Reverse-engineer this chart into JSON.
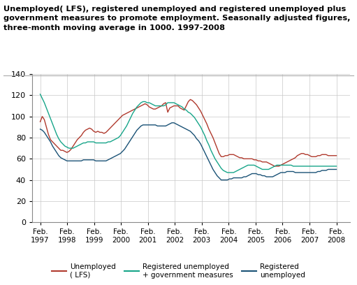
{
  "title_line1": "Unemployed( LFS), registered unemployed and registered unemployed plus",
  "title_line2": "government measures to promote employment. Seasonally adjusted figures,",
  "title_line3": "three-month moving average in 1000. 1997-2008",
  "ylim": [
    0,
    140
  ],
  "yticks": [
    0,
    20,
    40,
    60,
    80,
    100,
    120,
    140
  ],
  "xtick_labels": [
    "Feb.\n1997",
    "Feb.\n1998",
    "Feb.\n1999",
    "Feb.\n2000",
    "Feb.\n2001",
    "Feb.\n2002",
    "Feb.\n2003",
    "Feb.\n2004",
    "Feb.\n2005",
    "Feb.\n2006",
    "Feb.\n2007",
    "Feb.\n2008"
  ],
  "colors": {
    "lfs": "#b03a2e",
    "reg_plus_gov": "#17a589",
    "registered": "#1a5276"
  },
  "lfs": [
    95,
    100,
    97,
    90,
    83,
    78,
    76,
    74,
    72,
    70,
    68,
    68,
    67,
    66,
    67,
    69,
    72,
    75,
    78,
    80,
    82,
    85,
    87,
    88,
    89,
    88,
    86,
    85,
    86,
    85,
    85,
    84,
    85,
    87,
    89,
    91,
    93,
    95,
    97,
    99,
    101,
    102,
    103,
    104,
    105,
    106,
    107,
    108,
    109,
    110,
    111,
    112,
    111,
    109,
    108,
    107,
    107,
    108,
    109,
    110,
    112,
    113,
    104,
    108,
    109,
    110,
    110,
    110,
    108,
    107,
    106,
    110,
    114,
    116,
    115,
    113,
    111,
    108,
    105,
    101,
    97,
    93,
    88,
    84,
    80,
    75,
    70,
    65,
    62,
    62,
    63,
    63,
    64,
    64,
    64,
    63,
    62,
    61,
    61,
    60,
    60,
    60,
    60,
    60,
    59,
    59,
    58,
    58,
    57,
    57,
    57,
    56,
    55,
    54,
    53,
    53,
    53,
    54,
    55,
    56,
    57,
    58,
    59,
    60,
    61,
    63,
    64,
    65,
    65,
    64,
    64,
    63,
    62,
    62,
    62,
    63,
    63,
    64,
    64,
    64,
    63,
    63,
    63,
    63,
    63
  ],
  "reg_plus_gov": [
    121,
    117,
    113,
    108,
    103,
    98,
    93,
    88,
    83,
    79,
    76,
    74,
    72,
    71,
    70,
    70,
    70,
    71,
    72,
    73,
    74,
    75,
    75,
    76,
    76,
    76,
    76,
    75,
    75,
    75,
    75,
    75,
    75,
    76,
    76,
    77,
    78,
    79,
    80,
    82,
    85,
    88,
    91,
    95,
    99,
    103,
    106,
    109,
    111,
    113,
    114,
    114,
    113,
    113,
    112,
    111,
    110,
    110,
    110,
    110,
    110,
    111,
    113,
    113,
    113,
    113,
    112,
    111,
    110,
    109,
    107,
    106,
    104,
    103,
    101,
    99,
    96,
    93,
    90,
    86,
    82,
    77,
    73,
    68,
    64,
    60,
    57,
    54,
    51,
    49,
    48,
    47,
    47,
    47,
    47,
    48,
    49,
    50,
    51,
    52,
    53,
    54,
    54,
    54,
    54,
    53,
    52,
    51,
    50,
    50,
    50,
    50,
    51,
    52,
    53,
    54,
    54,
    54,
    54,
    54,
    54,
    54,
    54,
    53,
    53,
    53,
    53,
    53,
    53,
    53,
    53,
    53,
    53,
    53,
    53,
    53,
    53,
    53,
    53,
    53,
    53,
    53,
    53,
    53,
    53
  ],
  "registered": [
    88,
    87,
    85,
    82,
    79,
    76,
    72,
    69,
    66,
    63,
    61,
    60,
    59,
    58,
    58,
    58,
    58,
    58,
    58,
    58,
    58,
    59,
    59,
    59,
    59,
    59,
    59,
    58,
    58,
    58,
    58,
    58,
    58,
    59,
    60,
    61,
    62,
    63,
    64,
    65,
    67,
    69,
    72,
    75,
    78,
    81,
    84,
    87,
    89,
    91,
    92,
    92,
    92,
    92,
    92,
    92,
    92,
    91,
    91,
    91,
    91,
    91,
    92,
    93,
    94,
    94,
    93,
    92,
    91,
    90,
    89,
    88,
    87,
    86,
    84,
    82,
    79,
    77,
    74,
    70,
    66,
    62,
    58,
    54,
    50,
    47,
    44,
    42,
    40,
    40,
    40,
    40,
    41,
    41,
    42,
    42,
    42,
    42,
    42,
    43,
    43,
    44,
    45,
    46,
    46,
    46,
    45,
    45,
    44,
    44,
    43,
    43,
    43,
    43,
    44,
    45,
    46,
    47,
    47,
    47,
    48,
    48,
    48,
    48,
    47,
    47,
    47,
    47,
    47,
    47,
    47,
    47,
    47,
    47,
    47,
    48,
    48,
    49,
    49,
    49,
    50,
    50,
    50,
    50,
    50
  ]
}
